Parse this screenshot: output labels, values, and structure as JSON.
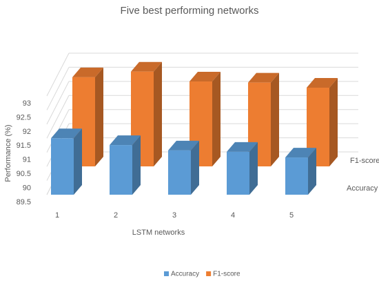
{
  "chart_data": {
    "type": "bar3d",
    "title": "Five best performing networks",
    "x_label": "LSTM networks",
    "y_label": "Performance (%)",
    "categories": [
      "1",
      "2",
      "3",
      "4",
      "5"
    ],
    "series": [
      {
        "name": "Accuracy",
        "color": "#5b9bd5",
        "values": [
          91.5,
          91.26,
          91.07,
          91.02,
          90.82
        ]
      },
      {
        "name": "F1-score",
        "color": "#ed7d31",
        "values": [
          92.66,
          92.86,
          92.51,
          92.47,
          92.29
        ]
      }
    ],
    "ylim": [
      89.5,
      93
    ],
    "yticks": [
      89.5,
      90,
      90.5,
      91,
      91.5,
      92,
      92.5,
      93
    ],
    "grid": true,
    "legend": "bottom"
  }
}
